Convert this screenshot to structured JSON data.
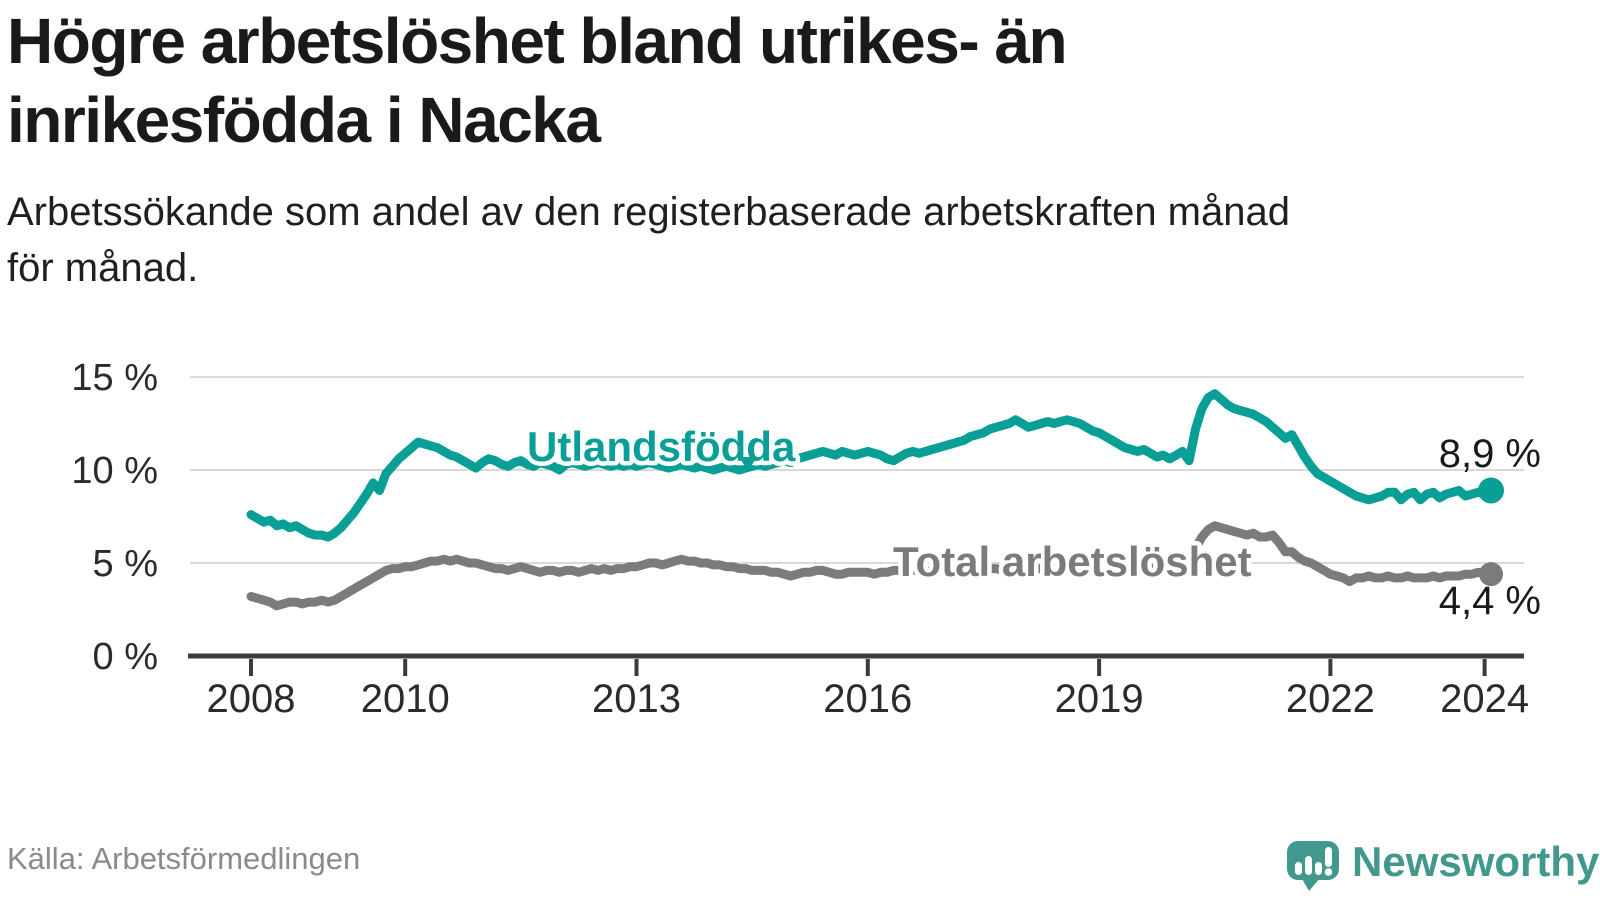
{
  "header": {
    "title_lines": [
      "Högre arbetslöshet bland utrikes- än",
      "inrikesfödda i Nacka"
    ],
    "subtitle_lines": [
      "Arbetssökande som andel av den registerbaserade arbetskraften månad",
      "för månad."
    ]
  },
  "footer": {
    "source": "Källa: Arbetsförmedlingen",
    "brand": "Newsworthy"
  },
  "colors": {
    "teal": "#0a9f96",
    "gray": "#7b7b7b",
    "gray_label": "#7b7b7b",
    "brand": "#43988e",
    "grid": "#d9d9d9",
    "axis": "#3c3c3c"
  },
  "chart_data": {
    "type": "line",
    "title": "Högre arbetslöshet bland utrikes- än inrikesfödda i Nacka",
    "subtitle": "Arbetssökande som andel av den registerbaserade arbetskraften månad för månad.",
    "xlabel": "",
    "ylabel": "",
    "x_start_year": 2008,
    "x_frequency": "monthly",
    "x_end": "2024-02",
    "ylim": [
      0,
      15.7
    ],
    "grid": "horizontal",
    "x_ticks": {
      "years": [
        2008,
        2010,
        2013,
        2016,
        2019,
        2022,
        2024
      ],
      "labels": [
        "2008",
        "2010",
        "2013",
        "2016",
        "2019",
        "2022",
        "2024"
      ]
    },
    "y_ticks": {
      "values": [
        0,
        5,
        10,
        15
      ],
      "labels": [
        "0 %",
        "5 %",
        "10 %",
        "15 %"
      ]
    },
    "series": [
      {
        "name": "Utlandsfödda",
        "color": "#0a9f96",
        "end_label": "8,9 %",
        "values": [
          7.6,
          7.4,
          7.2,
          7.3,
          7.0,
          7.1,
          6.9,
          7.0,
          6.8,
          6.6,
          6.5,
          6.5,
          6.4,
          6.6,
          6.9,
          7.3,
          7.7,
          8.2,
          8.7,
          9.3,
          8.9,
          9.8,
          10.2,
          10.6,
          10.9,
          11.2,
          11.5,
          11.4,
          11.3,
          11.2,
          11.0,
          10.8,
          10.7,
          10.5,
          10.3,
          10.1,
          10.4,
          10.6,
          10.5,
          10.3,
          10.2,
          10.4,
          10.5,
          10.3,
          10.2,
          10.4,
          10.3,
          10.2,
          10.0,
          10.3,
          10.4,
          10.3,
          10.2,
          10.3,
          10.4,
          10.3,
          10.2,
          10.3,
          10.2,
          10.3,
          10.2,
          10.3,
          10.4,
          10.3,
          10.2,
          10.1,
          10.2,
          10.3,
          10.2,
          10.1,
          10.2,
          10.1,
          10.0,
          10.1,
          10.2,
          10.1,
          10.0,
          10.1,
          10.2,
          10.3,
          10.2,
          10.3,
          10.4,
          10.5,
          10.4,
          10.6,
          10.7,
          10.8,
          10.9,
          11.0,
          10.9,
          10.8,
          11.0,
          10.9,
          10.8,
          10.9,
          11.0,
          10.9,
          10.8,
          10.6,
          10.5,
          10.7,
          10.9,
          11.0,
          10.9,
          11.0,
          11.1,
          11.2,
          11.3,
          11.4,
          11.5,
          11.6,
          11.8,
          11.9,
          12.0,
          12.2,
          12.3,
          12.4,
          12.5,
          12.7,
          12.5,
          12.3,
          12.4,
          12.5,
          12.6,
          12.5,
          12.6,
          12.7,
          12.6,
          12.5,
          12.3,
          12.1,
          12.0,
          11.8,
          11.6,
          11.4,
          11.2,
          11.1,
          11.0,
          11.1,
          10.9,
          10.7,
          10.8,
          10.6,
          10.8,
          11.0,
          10.5,
          12.2,
          13.3,
          13.9,
          14.1,
          13.8,
          13.5,
          13.3,
          13.2,
          13.1,
          13.0,
          12.8,
          12.6,
          12.3,
          12.0,
          11.7,
          11.9,
          11.3,
          10.7,
          10.2,
          9.8,
          9.6,
          9.4,
          9.2,
          9.0,
          8.8,
          8.6,
          8.5,
          8.4,
          8.5,
          8.6,
          8.8,
          8.8,
          8.4,
          8.7,
          8.8,
          8.4,
          8.7,
          8.8,
          8.5,
          8.7,
          8.8,
          8.9,
          8.6,
          8.7,
          8.8,
          8.7,
          8.9
        ]
      },
      {
        "name": "Total arbetslöshet",
        "color": "#7b7b7b",
        "end_label": "4,4 %",
        "values": [
          3.2,
          3.1,
          3.0,
          2.9,
          2.7,
          2.8,
          2.9,
          2.9,
          2.8,
          2.9,
          2.9,
          3.0,
          2.9,
          3.0,
          3.2,
          3.4,
          3.6,
          3.8,
          4.0,
          4.2,
          4.4,
          4.6,
          4.7,
          4.7,
          4.8,
          4.8,
          4.9,
          5.0,
          5.1,
          5.1,
          5.2,
          5.1,
          5.2,
          5.1,
          5.0,
          5.0,
          4.9,
          4.8,
          4.7,
          4.7,
          4.6,
          4.7,
          4.8,
          4.7,
          4.6,
          4.5,
          4.6,
          4.6,
          4.5,
          4.6,
          4.6,
          4.5,
          4.6,
          4.7,
          4.6,
          4.7,
          4.6,
          4.7,
          4.7,
          4.8,
          4.8,
          4.9,
          5.0,
          5.0,
          4.9,
          5.0,
          5.1,
          5.2,
          5.1,
          5.1,
          5.0,
          5.0,
          4.9,
          4.9,
          4.8,
          4.8,
          4.7,
          4.7,
          4.6,
          4.6,
          4.6,
          4.5,
          4.5,
          4.4,
          4.3,
          4.4,
          4.5,
          4.5,
          4.6,
          4.6,
          4.5,
          4.4,
          4.4,
          4.5,
          4.5,
          4.5,
          4.5,
          4.4,
          4.5,
          4.5,
          4.6,
          4.6,
          4.7,
          4.6,
          4.6,
          4.5,
          4.6,
          4.6,
          4.6,
          4.7,
          4.7,
          4.6,
          4.7,
          4.7,
          4.8,
          4.7,
          4.7,
          4.6,
          4.6,
          4.7,
          4.7,
          4.6,
          4.7,
          4.7,
          4.6,
          4.7,
          4.7,
          4.6,
          4.6,
          4.5,
          4.6,
          4.6,
          4.6,
          4.7,
          4.7,
          4.6,
          4.6,
          4.7,
          4.8,
          4.7,
          4.7,
          4.7,
          4.8,
          4.8,
          4.8,
          4.9,
          4.8,
          5.8,
          6.4,
          6.8,
          7.0,
          6.9,
          6.8,
          6.7,
          6.6,
          6.5,
          6.6,
          6.4,
          6.4,
          6.5,
          6.1,
          5.6,
          5.6,
          5.3,
          5.1,
          5.0,
          4.8,
          4.6,
          4.4,
          4.3,
          4.2,
          4.0,
          4.2,
          4.2,
          4.3,
          4.2,
          4.2,
          4.3,
          4.2,
          4.2,
          4.3,
          4.2,
          4.2,
          4.2,
          4.3,
          4.2,
          4.3,
          4.3,
          4.3,
          4.4,
          4.4,
          4.5,
          4.4,
          4.4
        ]
      }
    ],
    "legend_position": "on-chart"
  }
}
